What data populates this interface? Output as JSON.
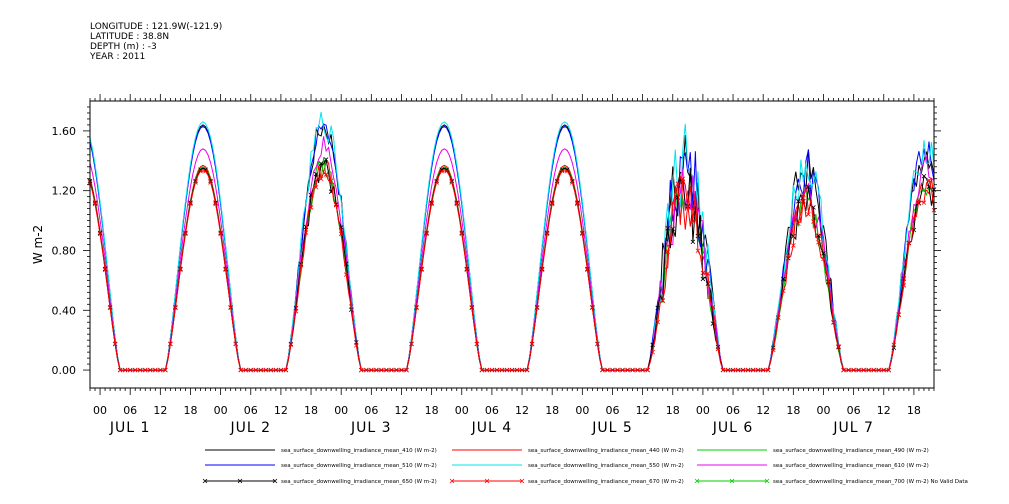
{
  "header": {
    "longitude": "LONGITUDE : 121.9W(-121.9)",
    "latitude": "LATITUDE : 38.8N",
    "depth": "DEPTH (m) : -3",
    "year": "YEAR : 2011"
  },
  "chart_data": {
    "type": "line",
    "title": "",
    "xlabel": "",
    "ylabel": "W m-2",
    "ylim": [
      -0.12,
      1.8
    ],
    "yticks": [
      "0.00",
      "0.40",
      "0.80",
      "1.20",
      "1.60"
    ],
    "xlim_hours": [
      -2,
      166
    ],
    "hour_ticks": [
      "00",
      "06",
      "12",
      "18",
      "00",
      "06",
      "12",
      "18",
      "00",
      "06",
      "12",
      "18",
      "00",
      "06",
      "12",
      "18",
      "00",
      "06",
      "12",
      "18",
      "00",
      "06",
      "12",
      "18",
      "00",
      "06",
      "12",
      "18"
    ],
    "day_labels": [
      "JUL  1",
      "JUL  2",
      "JUL  3",
      "JUL  4",
      "JUL  5",
      "JUL  6",
      "JUL  7"
    ],
    "grid": false,
    "legend_placement": "bottom",
    "series": [
      {
        "name": "sea_surface_downwelling_irradiance_mean_410 (W m-2)",
        "color": "#000000",
        "peak": 1.64
      },
      {
        "name": "sea_surface_downwelling_irradiance_mean_440 (W m-2)",
        "color": "#ff0000",
        "peak": 1.37
      },
      {
        "name": "sea_surface_downwelling_irradiance_mean_490 (W m-2)",
        "color": "#00cc00",
        "peak": 1.36
      },
      {
        "name": "sea_surface_downwelling_irradiance_mean_510 (W m-2)",
        "color": "#0000ff",
        "peak": 1.63
      },
      {
        "name": "sea_surface_downwelling_irradiance_mean_550 (W m-2)",
        "color": "#00e5ee",
        "peak": 1.66
      },
      {
        "name": "sea_surface_downwelling_irradiance_mean_610 (W m-2)",
        "color": "#ee00ee",
        "peak": 1.48
      },
      {
        "name": "sea_surface_downwelling_irradiance_mean_650 (W m-2)",
        "color": "#000000",
        "peak": 1.35,
        "marker": "x"
      },
      {
        "name": "sea_surface_downwelling_irradiance_mean_670 (W m-2)",
        "color": "#ff0000",
        "peak": 1.34,
        "marker": "x"
      },
      {
        "name": "sea_surface_downwelling_irradiance_mean_700 (W m-2) No Valid Data",
        "color": "#00cc00",
        "peak": 0,
        "marker": "x"
      }
    ],
    "daily_cycle": {
      "zero_from_hour": 4,
      "zero_to_hour": 13,
      "noon_hour": 20.5
    },
    "day_scale": [
      1.0,
      1.0,
      1.0,
      1.0,
      0.85,
      0.82,
      0.9
    ],
    "day_noise": [
      0.0,
      0.06,
      0.0,
      0.0,
      0.22,
      0.12,
      0.08
    ]
  }
}
